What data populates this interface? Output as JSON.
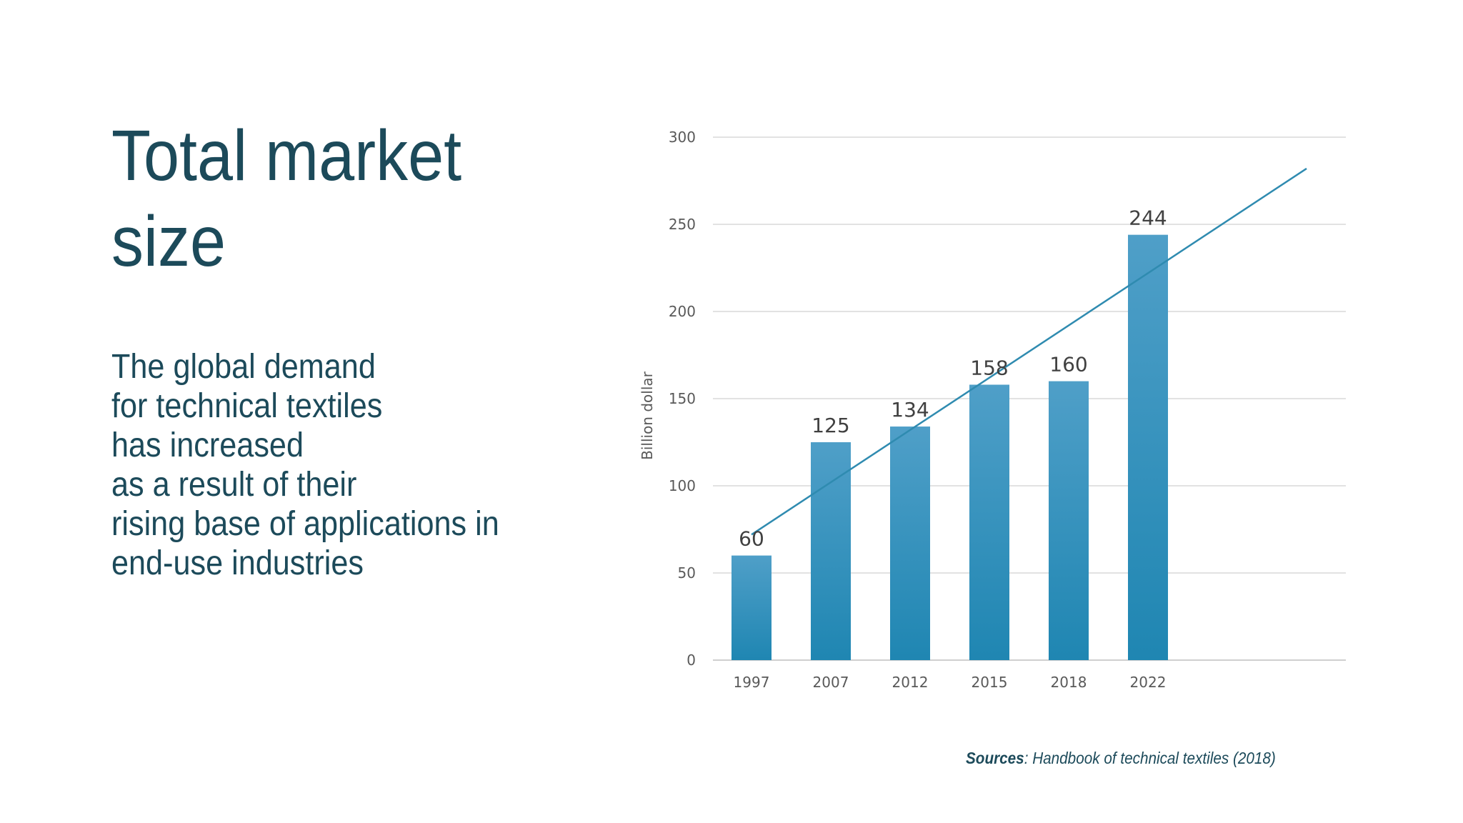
{
  "slide": {
    "title_lines": [
      "Total market",
      "size"
    ],
    "body_lines": [
      "The global demand",
      "for technical textiles",
      "has increased",
      "as a result of their",
      "rising base of applications in",
      "end-use industries"
    ],
    "source_label": "Sources",
    "source_text": ": Handbook of technical textiles (2018)"
  },
  "chart_data": {
    "type": "bar",
    "categories": [
      "1997",
      "2007",
      "2012",
      "2015",
      "2018",
      "2022"
    ],
    "values": [
      60,
      125,
      134,
      158,
      160,
      244
    ],
    "data_labels": [
      "60",
      "125",
      "134",
      "158",
      "160",
      "244"
    ],
    "title": "",
    "xlabel": "",
    "ylabel": "Billion dollar",
    "ylim": [
      0,
      300
    ],
    "yticks": [
      0,
      50,
      100,
      150,
      200,
      250,
      300
    ],
    "grid": true,
    "legend": "none",
    "trendline": {
      "type": "linear",
      "start_value": 72,
      "end_value": 282
    },
    "colors": {
      "bar_top": "#4f9fc8",
      "bar_bottom": "#1f86b2",
      "trendline": "#2f8bb0",
      "grid": "#d9d9d9",
      "axis_text": "#595959",
      "label_text": "#404040"
    }
  }
}
